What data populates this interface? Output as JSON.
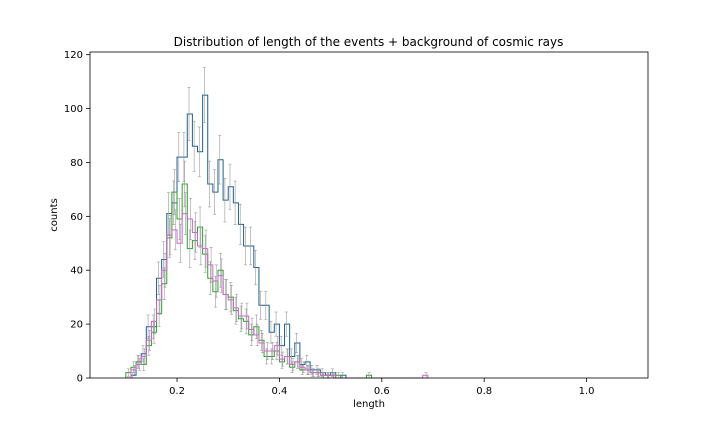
{
  "chart_data": {
    "type": "histogram-step",
    "title": "Distribution of length of the events + background of cosmic rays",
    "xlabel": "length",
    "ylabel": "counts",
    "xlim": [
      0.03,
      1.12
    ],
    "ylim": [
      0,
      121
    ],
    "xticks": [
      0.2,
      0.4,
      0.6,
      0.8,
      1.0
    ],
    "xtick_labels": [
      "0.2",
      "0.4",
      "0.6",
      "0.8",
      "1.0"
    ],
    "yticks": [
      0,
      20,
      40,
      60,
      80,
      100,
      120
    ],
    "ytick_labels": [
      "0",
      "20",
      "40",
      "60",
      "80",
      "100",
      "120"
    ],
    "bin_start": 0.1,
    "bin_width": 0.01,
    "error_bar_color": "#999999",
    "series": [
      {
        "color": "#1f5f8b",
        "values": [
          0,
          1,
          6,
          9,
          19,
          19,
          37,
          44,
          61,
          65,
          82,
          82,
          98,
          86,
          84,
          105,
          72,
          69,
          81,
          66,
          71,
          65,
          57,
          49,
          49,
          41,
          27,
          27,
          17,
          20,
          12,
          20,
          8,
          13,
          5,
          6,
          3,
          3,
          2,
          1,
          2,
          0,
          1,
          0,
          0
        ],
        "errors": [
          0,
          1,
          2.4,
          3,
          4.4,
          4.4,
          6.1,
          6.6,
          7.8,
          8.1,
          9.1,
          9.1,
          9.9,
          9.3,
          9.2,
          10.2,
          8.5,
          8.3,
          9,
          8.1,
          8.4,
          8.1,
          7.5,
          7,
          7,
          6.4,
          5.2,
          5.2,
          4.1,
          4.5,
          3.5,
          4.5,
          2.8,
          3.6,
          2.2,
          2.4,
          1.7,
          1.7,
          1.4,
          1,
          1.4,
          0,
          1,
          0,
          0
        ]
      },
      {
        "color": "#2ca02c",
        "values": [
          2,
          4,
          6,
          5,
          12,
          17,
          24,
          35,
          52,
          69,
          59,
          72,
          48,
          51,
          56,
          46,
          37,
          32,
          40,
          31,
          30,
          25,
          22,
          21,
          16,
          19,
          14,
          8,
          8,
          10,
          6,
          8,
          4,
          6,
          3,
          3,
          2,
          2,
          1,
          1,
          1,
          1,
          0,
          0,
          0,
          0,
          0,
          1
        ],
        "errors": [
          1.4,
          2,
          2.4,
          2.2,
          3.5,
          4.1,
          4.9,
          5.9,
          7.2,
          8.3,
          7.7,
          8.5,
          6.9,
          7.1,
          7.5,
          6.8,
          6.1,
          5.7,
          6.3,
          5.6,
          5.5,
          5,
          4.7,
          4.6,
          4,
          4.4,
          3.7,
          2.8,
          2.8,
          3.2,
          2.4,
          2.8,
          2,
          2.4,
          1.7,
          1.7,
          1.4,
          1.4,
          1,
          1,
          1,
          1,
          0,
          0,
          0,
          0,
          0,
          1
        ]
      },
      {
        "color": "#cc66cc",
        "values": [
          0,
          3,
          5,
          8,
          14,
          21,
          29,
          40,
          53,
          55,
          50,
          61,
          59,
          54,
          49,
          48,
          42,
          36,
          38,
          31,
          29,
          26,
          23,
          23,
          18,
          16,
          13,
          10,
          10,
          12,
          7,
          8,
          5,
          6,
          4,
          3,
          2,
          2,
          1,
          1,
          1,
          0,
          0,
          0,
          0,
          0,
          0,
          0,
          0,
          0,
          0,
          0,
          0,
          0,
          0,
          0,
          0,
          0,
          1
        ],
        "errors": [
          0,
          1.7,
          2.2,
          2.8,
          3.7,
          4.6,
          5.4,
          6.3,
          7.3,
          7.4,
          7.1,
          7.8,
          7.7,
          7.3,
          7,
          6.9,
          6.5,
          6,
          6.2,
          5.6,
          5.4,
          5.1,
          4.8,
          4.8,
          4.2,
          4,
          3.6,
          3.2,
          3.2,
          3.5,
          2.6,
          2.8,
          2.2,
          2.4,
          2,
          1.7,
          1.4,
          1.4,
          1,
          1,
          1,
          0,
          0,
          0,
          0,
          0,
          0,
          0,
          0,
          0,
          0,
          0,
          0,
          0,
          0,
          0,
          0,
          0,
          1
        ]
      }
    ]
  }
}
